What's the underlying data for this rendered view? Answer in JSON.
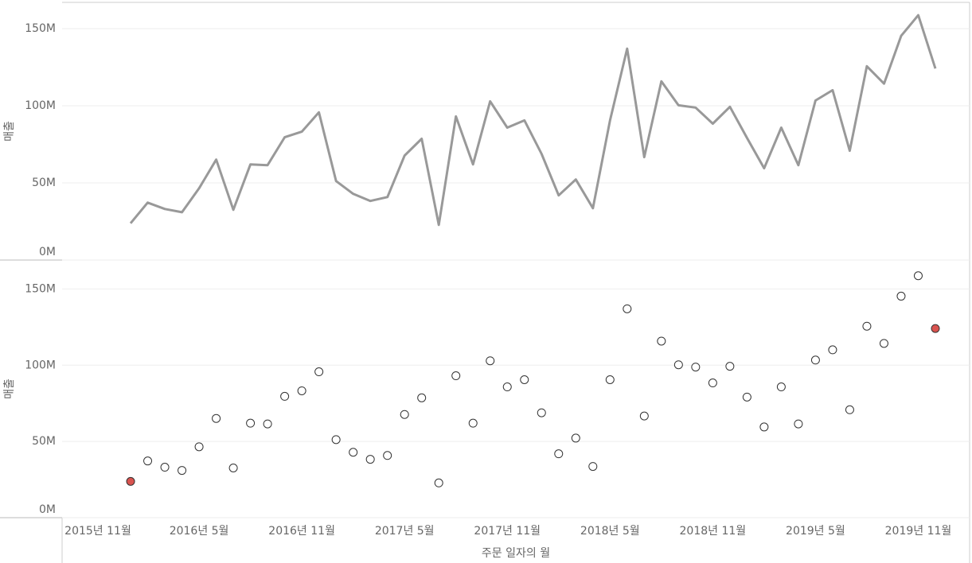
{
  "chart_data": [
    {
      "type": "line",
      "ylabel": "매출",
      "color": "#999999",
      "grid": true,
      "xlim": [
        "2015-09",
        "2020-02"
      ],
      "ylim": [
        0,
        167
      ],
      "yticks": [
        {
          "value": 0,
          "label": "0M"
        },
        {
          "value": 50,
          "label": "50M"
        },
        {
          "value": 100,
          "label": "100M"
        },
        {
          "value": 150,
          "label": "150M"
        }
      ],
      "x": [
        "2016-01",
        "2016-02",
        "2016-03",
        "2016-04",
        "2016-05",
        "2016-06",
        "2016-07",
        "2016-08",
        "2016-09",
        "2016-10",
        "2016-11",
        "2016-12",
        "2017-01",
        "2017-02",
        "2017-03",
        "2017-04",
        "2017-05",
        "2017-06",
        "2017-07",
        "2017-08",
        "2017-09",
        "2017-10",
        "2017-11",
        "2017-12",
        "2018-01",
        "2018-02",
        "2018-03",
        "2018-04",
        "2018-05",
        "2018-06",
        "2018-07",
        "2018-08",
        "2018-09",
        "2018-10",
        "2018-11",
        "2018-12",
        "2019-01",
        "2019-02",
        "2019-03",
        "2019-04",
        "2019-05",
        "2019-06",
        "2019-07",
        "2019-08",
        "2019-09",
        "2019-10",
        "2019-11",
        "2019-12"
      ],
      "values": [
        23.8,
        37.2,
        33.1,
        31.0,
        46.5,
        65.1,
        32.6,
        62.0,
        61.5,
        79.6,
        83.2,
        95.7,
        51.2,
        42.9,
        38.3,
        40.8,
        67.7,
        78.6,
        22.8,
        93.1,
        62.0,
        102.9,
        85.8,
        90.5,
        68.8,
        41.9,
        52.2,
        33.6,
        90.5,
        137.0,
        66.7,
        115.8,
        100.3,
        98.8,
        88.4,
        99.3,
        79.1,
        59.5,
        85.8,
        61.5,
        103.4,
        110.1,
        70.8,
        125.6,
        114.3,
        145.3,
        158.7,
        124.1
      ]
    },
    {
      "type": "scatter",
      "ylabel": "매출",
      "xlabel": "주문 일자의 월",
      "color": "#ffffff",
      "edge_color": "#333333",
      "highlight_indices": [
        0,
        47
      ],
      "highlight_color": "#d9534f",
      "grid": true,
      "xlim": [
        "2015-09",
        "2020-02"
      ],
      "xticks": [
        {
          "value": "2015-11",
          "label": "2015년 11월"
        },
        {
          "value": "2016-05",
          "label": "2016년 5월"
        },
        {
          "value": "2016-11",
          "label": "2016년 11월"
        },
        {
          "value": "2017-05",
          "label": "2017년 5월"
        },
        {
          "value": "2017-11",
          "label": "2017년 11월"
        },
        {
          "value": "2018-05",
          "label": "2018년 5월"
        },
        {
          "value": "2018-11",
          "label": "2018년 11월"
        },
        {
          "value": "2019-05",
          "label": "2019년 5월"
        },
        {
          "value": "2019-11",
          "label": "2019년 11월"
        }
      ],
      "ylim": [
        0,
        169
      ],
      "yticks": [
        {
          "value": 0,
          "label": "0M"
        },
        {
          "value": 50,
          "label": "50M"
        },
        {
          "value": 100,
          "label": "100M"
        },
        {
          "value": 150,
          "label": "150M"
        }
      ],
      "x": [
        "2016-01",
        "2016-02",
        "2016-03",
        "2016-04",
        "2016-05",
        "2016-06",
        "2016-07",
        "2016-08",
        "2016-09",
        "2016-10",
        "2016-11",
        "2016-12",
        "2017-01",
        "2017-02",
        "2017-03",
        "2017-04",
        "2017-05",
        "2017-06",
        "2017-07",
        "2017-08",
        "2017-09",
        "2017-10",
        "2017-11",
        "2017-12",
        "2018-01",
        "2018-02",
        "2018-03",
        "2018-04",
        "2018-05",
        "2018-06",
        "2018-07",
        "2018-08",
        "2018-09",
        "2018-10",
        "2018-11",
        "2018-12",
        "2019-01",
        "2019-02",
        "2019-03",
        "2019-04",
        "2019-05",
        "2019-06",
        "2019-07",
        "2019-08",
        "2019-09",
        "2019-10",
        "2019-11",
        "2019-12"
      ],
      "values": [
        23.8,
        37.2,
        33.1,
        31.0,
        46.5,
        65.1,
        32.6,
        62.0,
        61.5,
        79.6,
        83.2,
        95.7,
        51.2,
        42.9,
        38.3,
        40.8,
        67.7,
        78.6,
        22.8,
        93.1,
        62.0,
        102.9,
        85.8,
        90.5,
        68.8,
        41.9,
        52.2,
        33.6,
        90.5,
        137.0,
        66.7,
        115.8,
        100.3,
        98.8,
        88.4,
        99.3,
        79.1,
        59.5,
        85.8,
        61.5,
        103.4,
        110.1,
        70.8,
        125.6,
        114.3,
        145.3,
        158.7,
        124.1
      ]
    }
  ]
}
